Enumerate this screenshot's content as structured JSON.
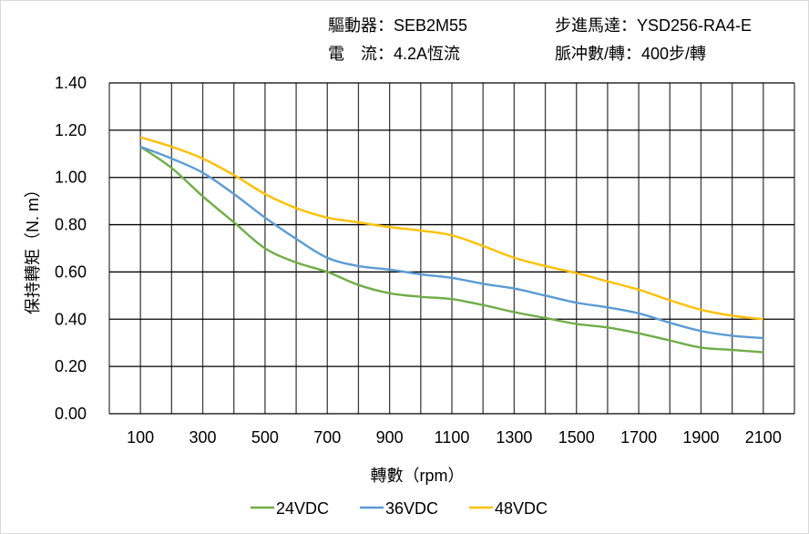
{
  "header": {
    "driver": "驅動器：SEB2M55",
    "motor": "步進馬達：YSD256-RA4-E",
    "current": "電　流：4.2A恆流",
    "pulses": "脈冲數/轉：400步/轉"
  },
  "chart_data": {
    "type": "line",
    "xlabel": "轉數（rpm）",
    "ylabel": "保持轉矩（N. m）",
    "xlim": [
      0,
      2200
    ],
    "ylim": [
      0,
      1.4
    ],
    "x_ticks": [
      "100",
      "300",
      "500",
      "700",
      "900",
      "1100",
      "1300",
      "1500",
      "1700",
      "1900",
      "2100"
    ],
    "y_ticks": [
      "0.00",
      "0.20",
      "0.40",
      "0.60",
      "0.80",
      "1.00",
      "1.20",
      "1.40"
    ],
    "grid": true,
    "legend_position": "bottom",
    "x": [
      100,
      200,
      300,
      400,
      500,
      600,
      700,
      800,
      900,
      1000,
      1100,
      1200,
      1300,
      1400,
      1500,
      1600,
      1700,
      1800,
      1900,
      2000,
      2100
    ],
    "series": [
      {
        "name": "24VDC",
        "color": "#70ad47",
        "values": [
          1.13,
          1.04,
          0.92,
          0.81,
          0.7,
          0.64,
          0.6,
          0.545,
          0.51,
          0.495,
          0.485,
          0.46,
          0.43,
          0.405,
          0.38,
          0.365,
          0.34,
          0.31,
          0.28,
          0.27,
          0.26
        ]
      },
      {
        "name": "36VDC",
        "color": "#5b9bd5",
        "values": [
          1.13,
          1.08,
          1.02,
          0.93,
          0.83,
          0.74,
          0.66,
          0.625,
          0.61,
          0.59,
          0.575,
          0.55,
          0.53,
          0.5,
          0.47,
          0.45,
          0.425,
          0.385,
          0.35,
          0.33,
          0.32
        ]
      },
      {
        "name": "48VDC",
        "color": "#ffc000",
        "values": [
          1.17,
          1.13,
          1.08,
          1.01,
          0.93,
          0.87,
          0.83,
          0.81,
          0.79,
          0.775,
          0.755,
          0.71,
          0.66,
          0.625,
          0.595,
          0.56,
          0.525,
          0.48,
          0.44,
          0.415,
          0.4
        ]
      }
    ]
  }
}
